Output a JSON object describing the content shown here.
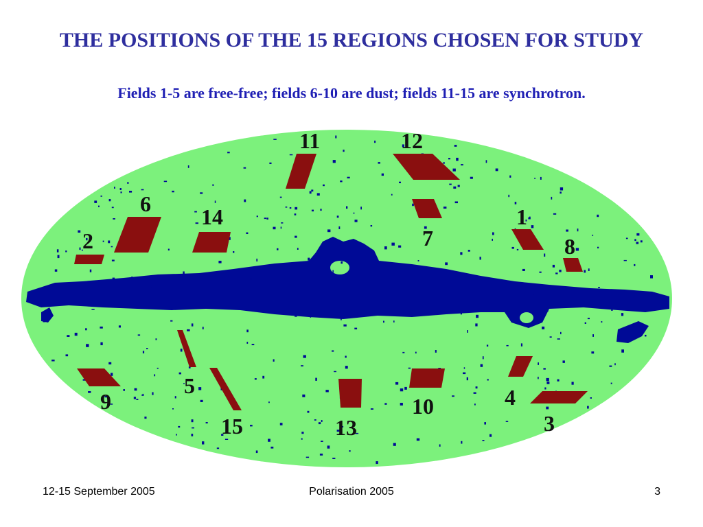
{
  "title": "THE POSITIONS OF THE 15 REGIONS CHOSEN FOR STUDY",
  "subtitle": "Fields 1-5 are free-free; fields 6-10 are dust; fields 11-15 are synchrotron.",
  "map": {
    "colors": {
      "background": "#7cf17c",
      "galactic_plane": "#000a96",
      "region": "#8a0f0f"
    },
    "region_labels": [
      "1",
      "2",
      "3",
      "4",
      "5",
      "6",
      "7",
      "8",
      "9",
      "10",
      "11",
      "12",
      "13",
      "14",
      "15"
    ]
  },
  "footer": {
    "left": "12-15 September 2005",
    "center": "Polarisation 2005",
    "right": "3"
  }
}
